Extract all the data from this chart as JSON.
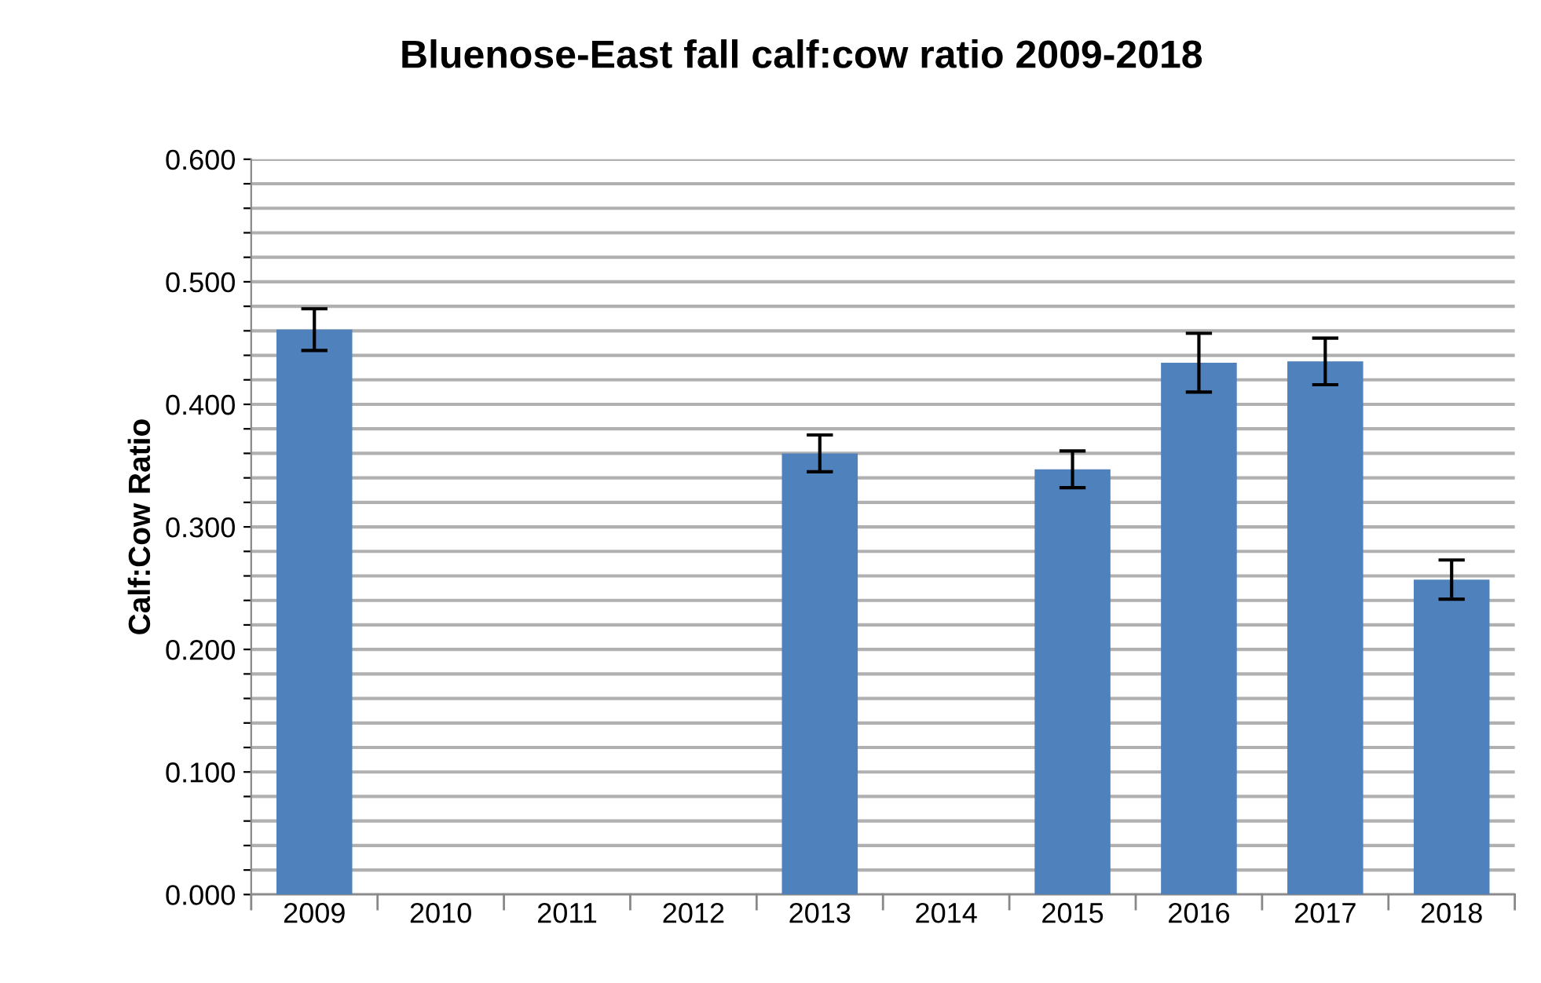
{
  "chart_data": {
    "type": "bar",
    "title": "Bluenose-East fall calf:cow ratio 2009-2018",
    "ylabel": "Calf:Cow Ratio",
    "categories": [
      "2009",
      "2010",
      "2011",
      "2012",
      "2013",
      "2014",
      "2015",
      "2016",
      "2017",
      "2018"
    ],
    "values": [
      0.461,
      0,
      0,
      0,
      0.36,
      0,
      0.347,
      0.434,
      0.435,
      0.257
    ],
    "errors": [
      0.017,
      null,
      null,
      null,
      0.015,
      null,
      0.015,
      0.024,
      0.019,
      0.016
    ],
    "color": "#4f81bd",
    "ylim": [
      0,
      0.6
    ],
    "yticks": [
      {
        "value": 0,
        "label": "0.000"
      },
      {
        "value": 0.02,
        "label": null
      },
      {
        "value": 0.04,
        "label": null
      },
      {
        "value": 0.06,
        "label": null
      },
      {
        "value": 0.08,
        "label": null
      },
      {
        "value": 0.1,
        "label": "0.100"
      },
      {
        "value": 0.12,
        "label": null
      },
      {
        "value": 0.14,
        "label": null
      },
      {
        "value": 0.16,
        "label": null
      },
      {
        "value": 0.18,
        "label": null
      },
      {
        "value": 0.2,
        "label": "0.200"
      },
      {
        "value": 0.22,
        "label": null
      },
      {
        "value": 0.24,
        "label": null
      },
      {
        "value": 0.26,
        "label": null
      },
      {
        "value": 0.28,
        "label": null
      },
      {
        "value": 0.3,
        "label": "0.300"
      },
      {
        "value": 0.32,
        "label": null
      },
      {
        "value": 0.34,
        "label": null
      },
      {
        "value": 0.36,
        "label": null
      },
      {
        "value": 0.38,
        "label": null
      },
      {
        "value": 0.4,
        "label": "0.400"
      },
      {
        "value": 0.42,
        "label": null
      },
      {
        "value": 0.44,
        "label": null
      },
      {
        "value": 0.46,
        "label": null
      },
      {
        "value": 0.48,
        "label": null
      },
      {
        "value": 0.5,
        "label": "0.500"
      },
      {
        "value": 0.52,
        "label": null
      },
      {
        "value": 0.54,
        "label": null
      },
      {
        "value": 0.56,
        "label": null
      },
      {
        "value": 0.58,
        "label": null
      },
      {
        "value": 0.6,
        "label": "0.600"
      }
    ],
    "grid": "y",
    "legend": false
  }
}
